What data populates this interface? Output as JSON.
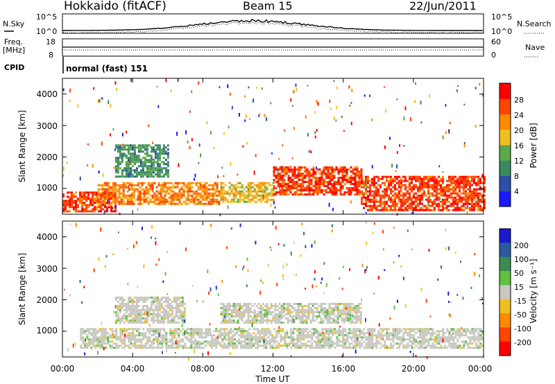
{
  "header": {
    "station": "Hokkaido (fitACF)",
    "beam": "Beam 15",
    "date": "22/Jun/2011"
  },
  "status_panel": {
    "nsky_label": "N.Sky",
    "nsearch_label": "N.Search",
    "noise_ticks": [
      "10^5",
      "10^0"
    ],
    "freq_label_line1": "Freq.",
    "freq_label_line2": "[MHz]",
    "freq_ticks": [
      "18",
      "8"
    ],
    "nave_label": "Nave",
    "nave_ticks": [
      "60",
      "0"
    ],
    "cpid_label": "CPID",
    "cpid_value": "normal (fast) 151"
  },
  "x_axis": {
    "title": "Time UT",
    "ticks": [
      "00:00",
      "04:00",
      "08:00",
      "12:00",
      "16:00",
      "20:00",
      "00:00"
    ]
  },
  "power_panel": {
    "ylabel": "Slant Range [km]",
    "yticks": [
      "1000",
      "2000",
      "3000",
      "4000"
    ],
    "colorbar_title": "Power [dB]",
    "colorbar_ticks": [
      "4",
      "8",
      "12",
      "16",
      "20",
      "24",
      "28"
    ],
    "colors": [
      "#1a1aff",
      "#2c4fa8",
      "#3a8a60",
      "#5aa84a",
      "#f0c020",
      "#ff8c00",
      "#ff4400",
      "#ff0000"
    ]
  },
  "velocity_panel": {
    "ylabel": "Slant Range [km]",
    "yticks": [
      "1000",
      "2000",
      "3000",
      "4000"
    ],
    "colorbar_title": "Velocity [m s⁻¹]",
    "colorbar_ticks": [
      "200",
      "100",
      "50",
      "15",
      "-15",
      "-50",
      "-100",
      "-200"
    ],
    "colors": [
      "#1a1ad0",
      "#2c5aa0",
      "#3c8c50",
      "#60c040",
      "#c8c8c0",
      "#f0c020",
      "#ff8c00",
      "#ff4400",
      "#ff0000"
    ]
  },
  "chart_data": [
    {
      "type": "heatmap",
      "title": "Power",
      "xlabel": "Time UT",
      "ylabel": "Slant Range [km]",
      "x_range_hours": [
        0,
        24
      ],
      "ylim": [
        180,
        4500
      ],
      "colorbar_label": "Power [dB]",
      "colorbar_range": [
        0,
        32
      ],
      "regions": [
        {
          "t": [
            0,
            3
          ],
          "r": [
            300,
            900
          ],
          "value": 28
        },
        {
          "t": [
            2,
            9
          ],
          "r": [
            500,
            1200
          ],
          "value": 22
        },
        {
          "t": [
            9,
            12
          ],
          "r": [
            600,
            1200
          ],
          "value": 18
        },
        {
          "t": [
            12,
            17
          ],
          "r": [
            800,
            1700
          ],
          "value": 28
        },
        {
          "t": [
            17,
            24
          ],
          "r": [
            300,
            1400
          ],
          "value": 28
        },
        {
          "t": [
            3,
            6
          ],
          "r": [
            1400,
            2400
          ],
          "value": 12
        }
      ]
    },
    {
      "type": "heatmap",
      "title": "Velocity",
      "xlabel": "Time UT",
      "ylabel": "Slant Range [km]",
      "x_range_hours": [
        0,
        24
      ],
      "ylim": [
        180,
        4500
      ],
      "colorbar_label": "Velocity [m s-1]",
      "colorbar_range": [
        -250,
        250
      ],
      "regions": [
        {
          "t": [
            1,
            24
          ],
          "r": [
            500,
            1100
          ],
          "value": 0
        },
        {
          "t": [
            9,
            17
          ],
          "r": [
            1300,
            1900
          ],
          "value": 0
        },
        {
          "t": [
            3,
            7
          ],
          "r": [
            1300,
            2100
          ],
          "value": 0
        }
      ]
    }
  ]
}
